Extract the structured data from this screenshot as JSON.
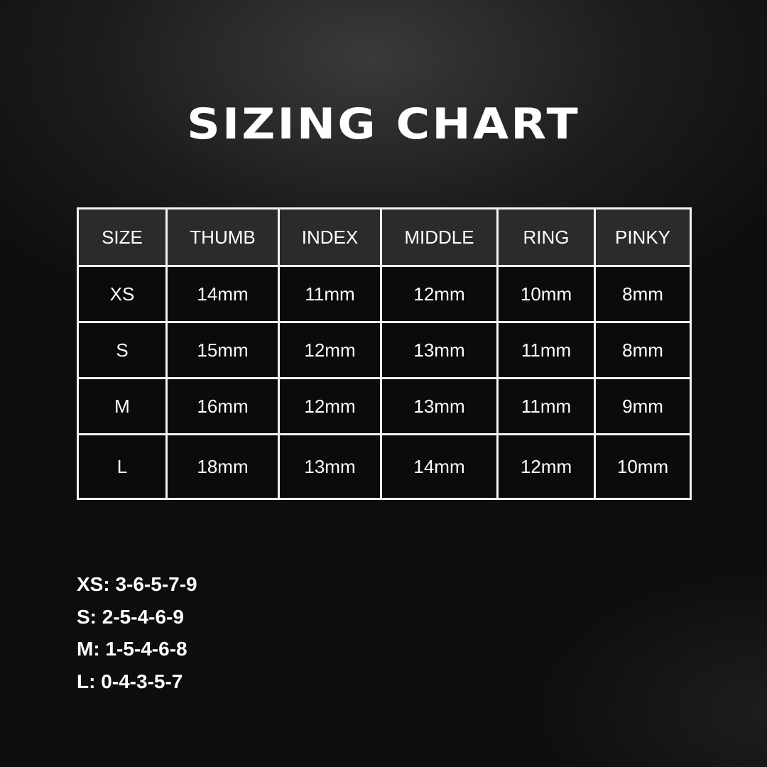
{
  "title": "SIZING CHART",
  "table": {
    "headers": [
      "SIZE",
      "THUMB",
      "INDEX",
      "MIDDLE",
      "RING",
      "PINKY"
    ],
    "rows": [
      [
        "XS",
        "14mm",
        "11mm",
        "12mm",
        "10mm",
        "8mm"
      ],
      [
        "S",
        "15mm",
        "12mm",
        "13mm",
        "11mm",
        "8mm"
      ],
      [
        "M",
        "16mm",
        "12mm",
        "13mm",
        "11mm",
        "9mm"
      ],
      [
        "L",
        "18mm",
        "13mm",
        "14mm",
        "12mm",
        "10mm"
      ]
    ]
  },
  "notes": [
    "XS: 3-6-5-7-9",
    "S: 2-5-4-6-9",
    "M: 1-5-4-6-8",
    "L: 0-4-3-5-7"
  ]
}
